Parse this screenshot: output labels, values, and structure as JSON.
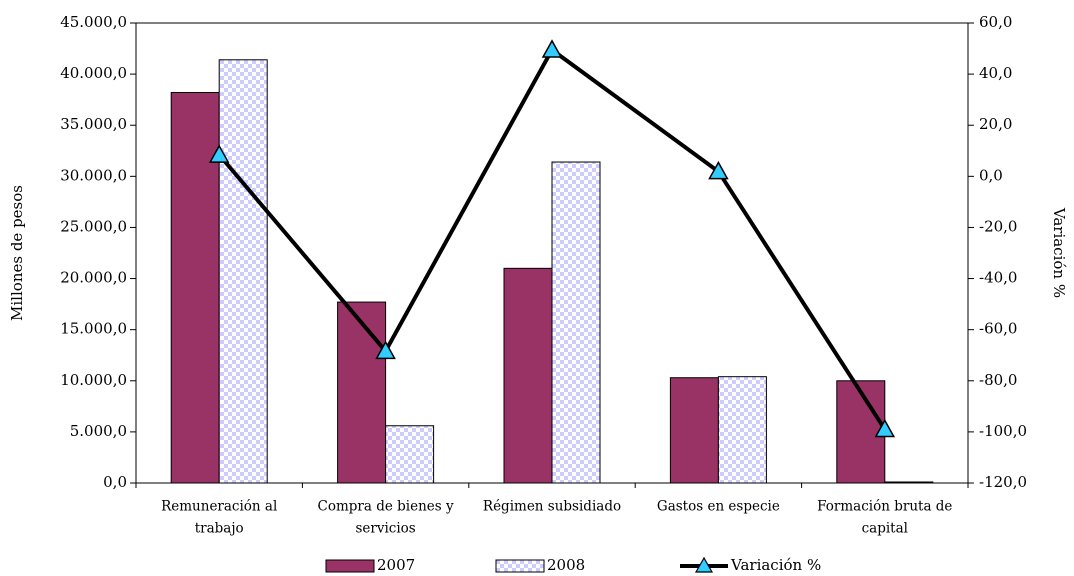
{
  "chart_data": {
    "type": "bar",
    "categories": [
      [
        "Remuneración al",
        "trabajo"
      ],
      [
        "Compra de bienes y",
        "servicios"
      ],
      [
        "Régimen subsidiado"
      ],
      [
        "Gastos en especie"
      ],
      [
        "Formación bruta de",
        "capital"
      ]
    ],
    "series": [
      {
        "name": "2007",
        "type": "bar",
        "axis": "left",
        "color": "#993366",
        "values": [
          38200,
          17700,
          21000,
          10300,
          10000
        ]
      },
      {
        "name": "2008",
        "type": "bar",
        "axis": "left",
        "pattern": "checker",
        "color": "#ccccff",
        "values": [
          41400,
          5600,
          31400,
          10400,
          100
        ]
      },
      {
        "name": "Variación %",
        "type": "line",
        "axis": "right",
        "color": "#000000",
        "marker_color": "#33ccff",
        "marker": "triangle",
        "values": [
          8.4,
          -68.4,
          49.5,
          1.9,
          -99.0
        ]
      }
    ],
    "ylabel": "Millones de pesos",
    "y2label": "Variación %",
    "ylim": [
      0,
      45000
    ],
    "y2lim": [
      -120,
      60
    ],
    "yticks": [
      "0,0",
      "5.000,0",
      "10.000,0",
      "15.000,0",
      "20.000,0",
      "25.000,0",
      "30.000,0",
      "35.000,0",
      "40.000,0",
      "45.000,0"
    ],
    "y2ticks": [
      "-120,0",
      "-100,0",
      "-80,0",
      "-60,0",
      "-40,0",
      "-20,0",
      "0,0",
      "20,0",
      "40,0",
      "60,0"
    ],
    "grid": false,
    "legend_position": "bottom"
  }
}
